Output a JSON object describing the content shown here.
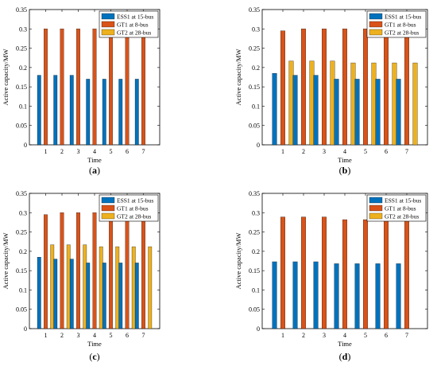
{
  "chart_data": [
    {
      "type": "bar",
      "panel_label": "a",
      "caption": "(a)",
      "xlabel": "Time",
      "ylabel": "Active capacity/MW",
      "ylim": [
        0,
        0.35
      ],
      "yticks": [
        "0",
        "0.05",
        "0.1",
        "0.15",
        "0.2",
        "0.25",
        "0.3",
        "0.35"
      ],
      "categories": [
        "1",
        "2",
        "3",
        "4",
        "5",
        "6",
        "7"
      ],
      "legend_position": "top-right",
      "grid": false,
      "series": [
        {
          "name": "ESS1 at 15-bus",
          "color": "#0072bd",
          "values": [
            0.18,
            0.18,
            0.18,
            0.17,
            0.17,
            0.17,
            0.17
          ]
        },
        {
          "name": "GT1 at 8-bus",
          "color": "#d95319",
          "values": [
            0.3,
            0.3,
            0.3,
            0.3,
            0.3,
            0.3,
            0.3
          ]
        },
        {
          "name": "GT2 at 28-bus",
          "color": "#edb120",
          "values": [
            0,
            0,
            0,
            0,
            0,
            0,
            0
          ]
        }
      ]
    },
    {
      "type": "bar",
      "panel_label": "b",
      "caption": "(b)",
      "xlabel": "Time",
      "ylabel": "Active capacity/MW",
      "ylim": [
        0,
        0.35
      ],
      "yticks": [
        "0",
        "0.05",
        "0.1",
        "0.15",
        "0.2",
        "0.25",
        "0.3",
        "0.35"
      ],
      "categories": [
        "1",
        "2",
        "3",
        "4",
        "5",
        "6",
        "7"
      ],
      "legend_position": "top-right",
      "grid": false,
      "series": [
        {
          "name": "ESS1 at 15-bus",
          "color": "#0072bd",
          "values": [
            0.185,
            0.18,
            0.18,
            0.17,
            0.17,
            0.17,
            0.17
          ]
        },
        {
          "name": "GT1 at 8-bus",
          "color": "#d95319",
          "values": [
            0.295,
            0.3,
            0.3,
            0.3,
            0.3,
            0.3,
            0.3
          ]
        },
        {
          "name": "GT2 at 28-bus",
          "color": "#edb120",
          "values": [
            0.217,
            0.217,
            0.217,
            0.212,
            0.212,
            0.212,
            0.212
          ]
        }
      ]
    },
    {
      "type": "bar",
      "panel_label": "c",
      "caption": "(c)",
      "xlabel": "Time",
      "ylabel": "Active capacity/MW",
      "ylim": [
        0,
        0.35
      ],
      "yticks": [
        "0",
        "0.05",
        "0.1",
        "0.15",
        "0.2",
        "0.25",
        "0.3",
        "0.35"
      ],
      "categories": [
        "1",
        "2",
        "3",
        "4",
        "5",
        "6",
        "7"
      ],
      "legend_position": "top-right",
      "grid": false,
      "series": [
        {
          "name": "ESS1 at 15-bus",
          "color": "#0072bd",
          "values": [
            0.185,
            0.18,
            0.18,
            0.17,
            0.17,
            0.17,
            0.17
          ]
        },
        {
          "name": "GT1 at 8-bus",
          "color": "#d95319",
          "values": [
            0.295,
            0.3,
            0.3,
            0.3,
            0.3,
            0.3,
            0.3
          ]
        },
        {
          "name": "GT2 at 28-bus",
          "color": "#edb120",
          "values": [
            0.217,
            0.217,
            0.217,
            0.212,
            0.212,
            0.212,
            0.212
          ]
        }
      ]
    },
    {
      "type": "bar",
      "panel_label": "d",
      "caption": "(d)",
      "xlabel": "Time",
      "ylabel": "Active capacity/MW",
      "ylim": [
        0,
        0.35
      ],
      "yticks": [
        "0",
        "0.05",
        "0.1",
        "0.15",
        "0.2",
        "0.25",
        "0.3",
        "0.35"
      ],
      "categories": [
        "1",
        "2",
        "3",
        "4",
        "5",
        "6",
        "7"
      ],
      "legend_position": "top-right",
      "grid": false,
      "series": [
        {
          "name": "ESS1 at 15-bus",
          "color": "#0072bd",
          "values": [
            0.173,
            0.173,
            0.173,
            0.168,
            0.168,
            0.168,
            0.168
          ]
        },
        {
          "name": "GT1 at 8-bus",
          "color": "#d95319",
          "values": [
            0.289,
            0.289,
            0.289,
            0.282,
            0.282,
            0.282,
            0.282
          ]
        },
        {
          "name": "GT2 at 28-bus",
          "color": "#edb120",
          "values": [
            0,
            0,
            0,
            0,
            0,
            0,
            0
          ]
        }
      ]
    }
  ]
}
